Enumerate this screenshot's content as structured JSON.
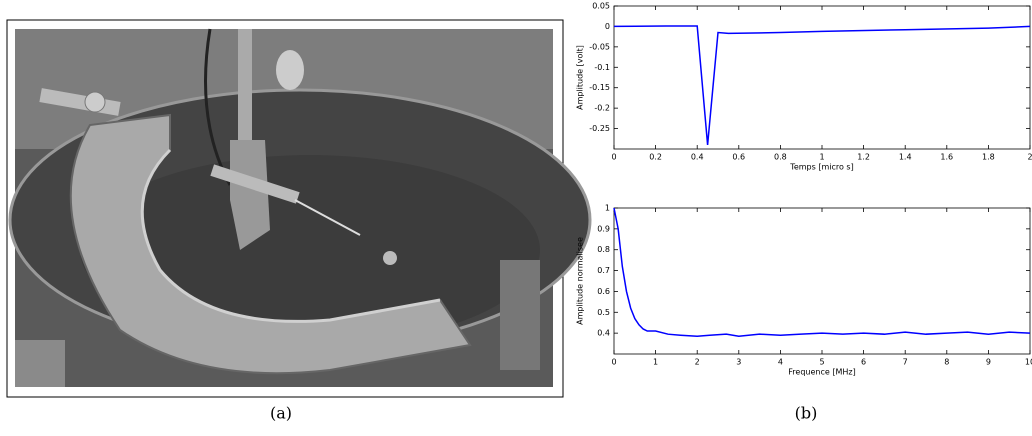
{
  "captions": [
    "(a)",
    "(b)"
  ],
  "chart_data": [
    {
      "type": "line",
      "xlabel": "Temps [micro s]",
      "ylabel": "Amplitude [volt]",
      "xlim": [
        0,
        2
      ],
      "xticks": [
        0,
        0.2,
        0.4,
        0.6,
        0.8,
        1,
        1.2,
        1.4,
        1.6,
        1.8,
        2
      ],
      "ylim": [
        -0.3,
        0.05
      ],
      "yticks": [
        0.05,
        0,
        -0.05,
        -0.1,
        -0.15,
        -0.2,
        -0.25
      ],
      "grid": false,
      "series": [
        {
          "color": "#0000ff",
          "x": [
            0,
            0.25,
            0.4,
            0.45,
            0.5,
            0.55,
            0.8,
            1.0,
            1.4,
            1.8,
            2.0
          ],
          "values": [
            0.0,
            0.001,
            0.001,
            -0.29,
            -0.015,
            -0.017,
            -0.015,
            -0.012,
            -0.008,
            -0.004,
            0.0
          ]
        }
      ]
    },
    {
      "type": "line",
      "xlabel": "Frequence [MHz]",
      "ylabel": "Amplitude normalisee",
      "xlim": [
        0,
        10
      ],
      "xticks": [
        0,
        1,
        2,
        3,
        4,
        5,
        6,
        7,
        8,
        9,
        10
      ],
      "ylim": [
        0.3,
        1
      ],
      "yticks": [
        0.4,
        0.5,
        0.6,
        0.7,
        0.8,
        0.9,
        1
      ],
      "grid": false,
      "series": [
        {
          "color": "#0000ff",
          "x": [
            0,
            0.1,
            0.2,
            0.3,
            0.4,
            0.5,
            0.6,
            0.7,
            0.8,
            1.0,
            1.3,
            1.6,
            2.0,
            2.3,
            2.7,
            3.0,
            3.5,
            4.0,
            4.5,
            5.0,
            5.5,
            6.0,
            6.5,
            7.0,
            7.5,
            8.0,
            8.5,
            9.0,
            9.5,
            10.0
          ],
          "values": [
            1.0,
            0.9,
            0.72,
            0.6,
            0.52,
            0.47,
            0.44,
            0.42,
            0.41,
            0.41,
            0.395,
            0.39,
            0.385,
            0.39,
            0.395,
            0.385,
            0.395,
            0.39,
            0.395,
            0.4,
            0.395,
            0.4,
            0.395,
            0.405,
            0.395,
            0.4,
            0.405,
            0.395,
            0.405,
            0.4
          ]
        }
      ]
    }
  ]
}
